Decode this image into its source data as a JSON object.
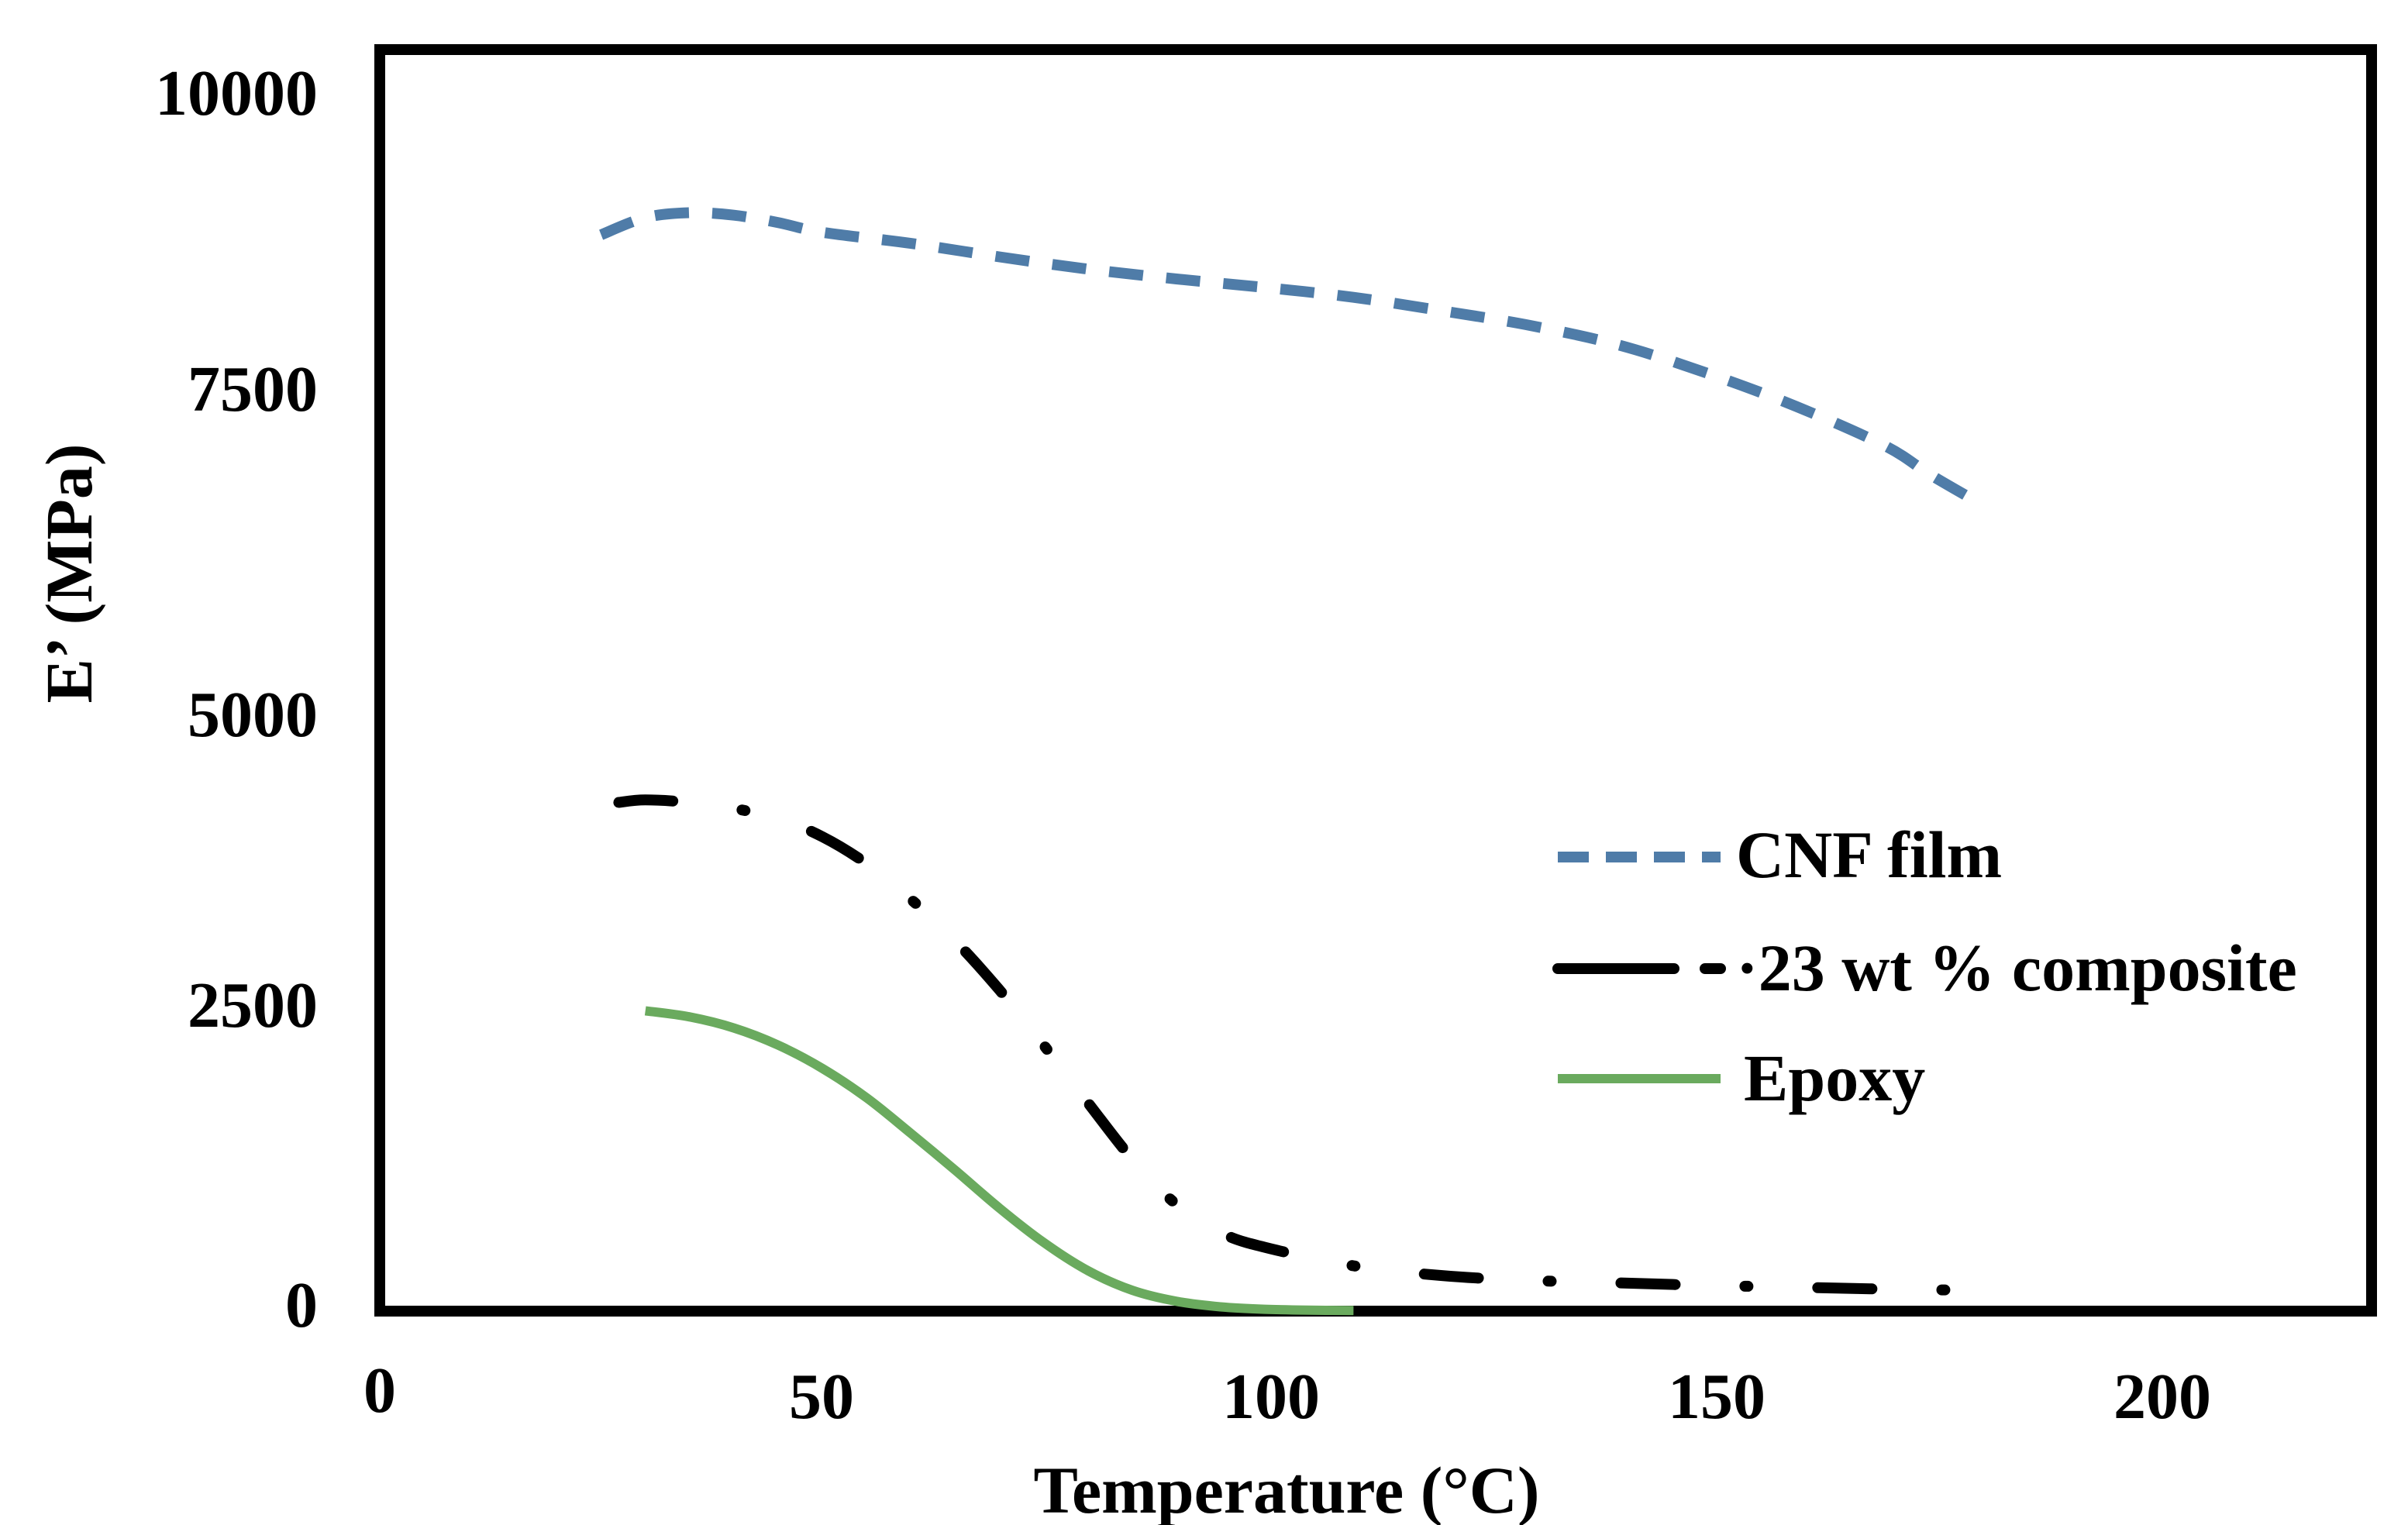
{
  "chart_data": {
    "type": "line",
    "title": "",
    "xlabel": "Temperature (°C)",
    "ylabel": "E’ (MPa)",
    "xlim": [
      0,
      225
    ],
    "ylim": [
      0,
      10000
    ],
    "x_ticks": [
      0,
      50,
      100,
      150,
      200
    ],
    "x_tick_labels": [
      "0",
      "50",
      "100",
      "150",
      "200"
    ],
    "y_ticks": [
      0,
      2500,
      5000,
      7500,
      10000
    ],
    "y_tick_labels": [
      "0",
      "2500",
      "5000",
      "7500",
      "10000"
    ],
    "grid": false,
    "legend_position": "right-middle",
    "series": [
      {
        "name": "CNF film",
        "color": "#4f7ca8",
        "style": "dashed",
        "x": [
          25,
          30,
          35,
          40,
          45,
          50,
          60,
          70,
          80,
          90,
          100,
          110,
          120,
          130,
          140,
          150,
          160,
          170,
          175,
          180
        ],
        "y": [
          8780,
          8920,
          8960,
          8940,
          8880,
          8800,
          8710,
          8600,
          8500,
          8420,
          8350,
          8270,
          8160,
          8040,
          7880,
          7650,
          7380,
          7060,
          6830,
          6620
        ]
      },
      {
        "name": "23 wt % composite",
        "color": "#000000",
        "style": "dash-dot",
        "x": [
          27,
          30,
          35,
          40,
          45,
          50,
          55,
          60,
          65,
          70,
          75,
          80,
          85,
          90,
          95,
          100,
          110,
          120,
          130,
          140,
          150,
          160,
          170,
          180
        ],
        "y": [
          4150,
          4170,
          4150,
          4100,
          4020,
          3870,
          3650,
          3360,
          3020,
          2620,
          2170,
          1700,
          1240,
          870,
          640,
          520,
          370,
          290,
          250,
          230,
          210,
          195,
          180,
          170
        ]
      },
      {
        "name": "Epoxy",
        "color": "#6aaa5e",
        "style": "solid",
        "x": [
          30,
          35,
          40,
          45,
          50,
          55,
          60,
          65,
          70,
          75,
          80,
          85,
          90,
          95,
          100,
          105,
          110
        ],
        "y": [
          2450,
          2400,
          2310,
          2170,
          1980,
          1740,
          1450,
          1150,
          840,
          560,
          330,
          170,
          80,
          35,
          15,
          8,
          5
        ]
      }
    ]
  }
}
